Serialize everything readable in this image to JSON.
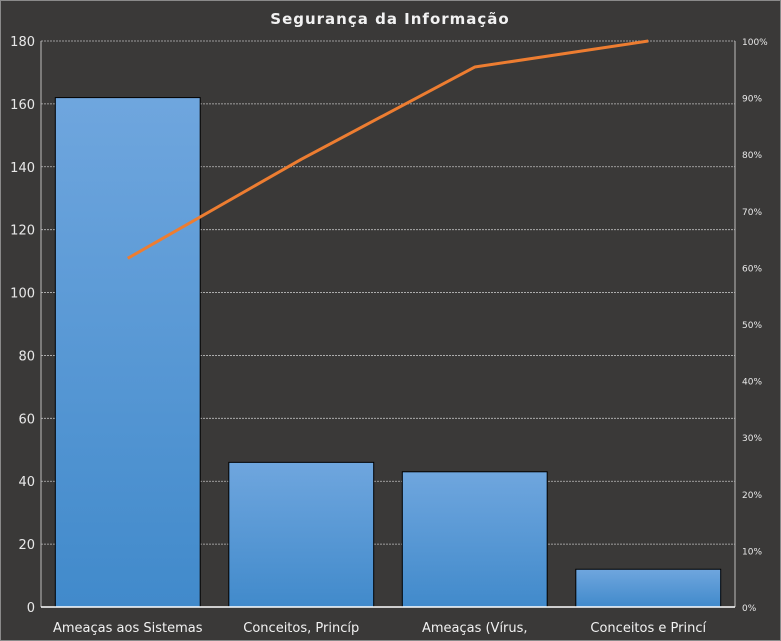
{
  "chart_data": {
    "type": "bar",
    "title": "Segurança da Informação",
    "categories": [
      "Ameaças aos Sistemas",
      "Conceitos, Princíp",
      "Ameaças (Vírus,",
      "Conceitos e Princí"
    ],
    "series": [
      {
        "type": "bar",
        "axis": "left",
        "values": [
          162,
          46,
          43,
          12
        ],
        "color": "#4a8fd0"
      },
      {
        "type": "line",
        "axis": "right",
        "values": [
          61.6,
          79.1,
          95.4,
          100
        ],
        "color": "#ed7d31"
      }
    ],
    "ylim": [
      0,
      180
    ],
    "yticks": [
      0,
      20,
      40,
      60,
      80,
      100,
      120,
      140,
      160,
      180
    ],
    "y2lim": [
      0,
      100
    ],
    "y2ticks": [
      "0%",
      "10%",
      "20%",
      "30%",
      "40%",
      "50%",
      "60%",
      "70%",
      "80%",
      "90%",
      "100%"
    ],
    "grid": true,
    "legend": "none",
    "colors": {
      "background": "#3a3938",
      "bar": "#4a8fd0",
      "line": "#ed7d31",
      "text": "#ffffff"
    }
  }
}
